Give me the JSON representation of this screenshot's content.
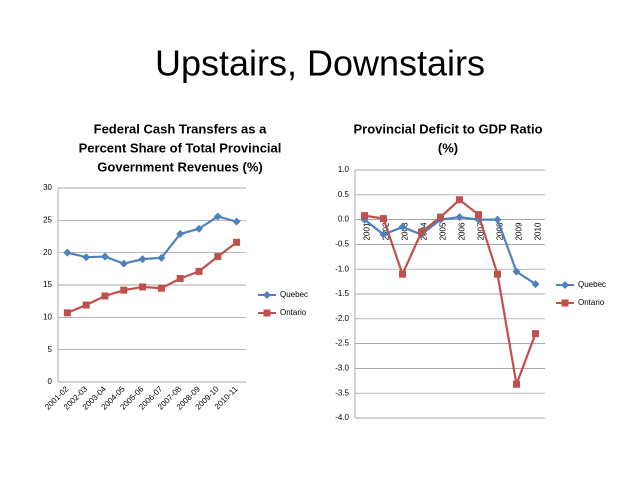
{
  "slide_title": "Upstairs, Downstairs",
  "chart_data": [
    {
      "type": "line",
      "title": [
        "Federal Cash Transfers as a",
        "Percent Share of Total Provincial",
        "Government Revenues (%)"
      ],
      "categories": [
        "2001-02",
        "2002-03",
        "2003-04",
        "2004-05",
        "2005-06",
        "2006-07",
        "2007-08",
        "2008-09",
        "2009-10",
        "2010-11"
      ],
      "series": [
        {
          "name": "Quebec",
          "color": "#4f81bd",
          "marker": "diamond",
          "values": [
            20.0,
            19.3,
            19.4,
            18.3,
            19.0,
            19.2,
            22.9,
            23.7,
            25.6,
            24.8
          ]
        },
        {
          "name": "Ontario",
          "color": "#c0504d",
          "marker": "square",
          "values": [
            10.7,
            11.9,
            13.3,
            14.2,
            14.7,
            14.5,
            16.0,
            17.1,
            19.4,
            21.6
          ]
        }
      ],
      "ylim": [
        0,
        30
      ],
      "yticks": [
        0,
        5,
        10,
        15,
        20,
        25,
        30
      ],
      "grid": true,
      "legend": "right"
    },
    {
      "type": "line",
      "title": [
        "Provincial Deficit to GDP Ratio",
        "(%)"
      ],
      "categories": [
        "2001",
        "2002",
        "2003",
        "2004",
        "2005",
        "2006",
        "2007",
        "2008",
        "2009",
        "2010"
      ],
      "series": [
        {
          "name": "Quebec",
          "color": "#4f81bd",
          "marker": "diamond",
          "values": [
            0.0,
            -0.3,
            -0.15,
            -0.3,
            0.0,
            0.05,
            0.0,
            0.0,
            -1.05,
            -1.3
          ]
        },
        {
          "name": "Ontario",
          "color": "#c0504d",
          "marker": "square",
          "values": [
            0.08,
            0.02,
            -1.1,
            -0.25,
            0.05,
            0.4,
            0.1,
            -1.1,
            -3.32,
            -2.3
          ]
        }
      ],
      "ylim": [
        -4,
        1
      ],
      "yticks": [
        {
          "value": 1,
          "label": "1.0"
        },
        0.5,
        {
          "value": 0,
          "label": "0.0"
        },
        -0.5,
        {
          "value": -1,
          "label": "-1.0"
        },
        -1.5,
        {
          "value": -2,
          "label": "-2.0"
        },
        -2.5,
        {
          "value": -3,
          "label": "-3.0"
        },
        -3.5,
        {
          "value": -4,
          "label": "-4.0"
        }
      ],
      "grid": true,
      "legend": "right"
    }
  ]
}
